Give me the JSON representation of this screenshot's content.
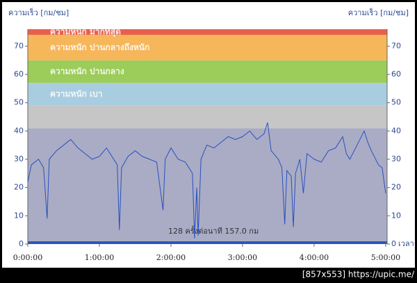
{
  "chart_data": {
    "type": "line",
    "y_label": "ความเร็ว [กม/ชม]",
    "y2_label": "ความเร็ว [กม/ชม]",
    "x_label": "เวลา",
    "annotation": "128 ครั้งต่อนาที 157.0 กม",
    "footer": "[857x553] https://upic.me/",
    "xlim": [
      0,
      5.02
    ],
    "xticks": [
      {
        "value": 0,
        "label": "0:00:00"
      },
      {
        "value": 1,
        "label": "1:00:00"
      },
      {
        "value": 2,
        "label": "2:00:00"
      },
      {
        "value": 3,
        "label": "3:00:00"
      },
      {
        "value": 4,
        "label": "4:00:00"
      },
      {
        "value": 5,
        "label": "5:00:00"
      }
    ],
    "ylim": [
      0,
      76
    ],
    "yticks": [
      0,
      10,
      20,
      30,
      40,
      50,
      60,
      70
    ],
    "bands": [
      {
        "from": 0,
        "to": 1,
        "color": "#2f55b8"
      },
      {
        "from": 1,
        "to": 41,
        "color": "#a9acc4"
      },
      {
        "from": 41,
        "to": 49,
        "color": "#c6c6c6"
      },
      {
        "from": 49,
        "to": 57,
        "color": "#a9cde0",
        "label": "ความหนัก เบา"
      },
      {
        "from": 57,
        "to": 65,
        "color": "#9ccc5a",
        "label": "ความหนัก ปานกลาง"
      },
      {
        "from": 65,
        "to": 74,
        "color": "#f6b65a",
        "label": "ความหนัก ปานกลางถึงหนัก"
      },
      {
        "from": 74,
        "to": 76,
        "color": "#e8604c",
        "label": "ความหนัก มากที่สุด"
      }
    ],
    "series": [
      {
        "name": "ความเร็ว",
        "color": "#2a4fbf",
        "x": [
          0,
          0.05,
          0.15,
          0.22,
          0.27,
          0.3,
          0.4,
          0.5,
          0.6,
          0.7,
          0.8,
          0.9,
          1.0,
          1.1,
          1.2,
          1.25,
          1.28,
          1.31,
          1.4,
          1.5,
          1.6,
          1.7,
          1.8,
          1.89,
          1.92,
          2.0,
          2.1,
          2.2,
          2.3,
          2.33,
          2.36,
          2.38,
          2.42,
          2.5,
          2.6,
          2.7,
          2.8,
          2.9,
          3.0,
          3.1,
          3.2,
          3.3,
          3.35,
          3.4,
          3.5,
          3.55,
          3.59,
          3.62,
          3.68,
          3.71,
          3.74,
          3.8,
          3.85,
          3.9,
          4.0,
          4.1,
          4.2,
          4.3,
          4.4,
          4.45,
          4.5,
          4.6,
          4.7,
          4.75,
          4.8,
          4.9,
          4.95,
          5.0
        ],
        "values": [
          22,
          28,
          30,
          27,
          9,
          30,
          33,
          35,
          37,
          34,
          32,
          30,
          31,
          34,
          30,
          28,
          5,
          27,
          31,
          33,
          31,
          30,
          29,
          12,
          30,
          34,
          30,
          29,
          25,
          2,
          20,
          3,
          30,
          35,
          34,
          36,
          38,
          37,
          38,
          40,
          37,
          39,
          43,
          33,
          30,
          27,
          7,
          26,
          24,
          6,
          25,
          30,
          18,
          32,
          30,
          29,
          33,
          34,
          38,
          32,
          30,
          35,
          40,
          36,
          33,
          28,
          27,
          18
        ]
      }
    ]
  }
}
